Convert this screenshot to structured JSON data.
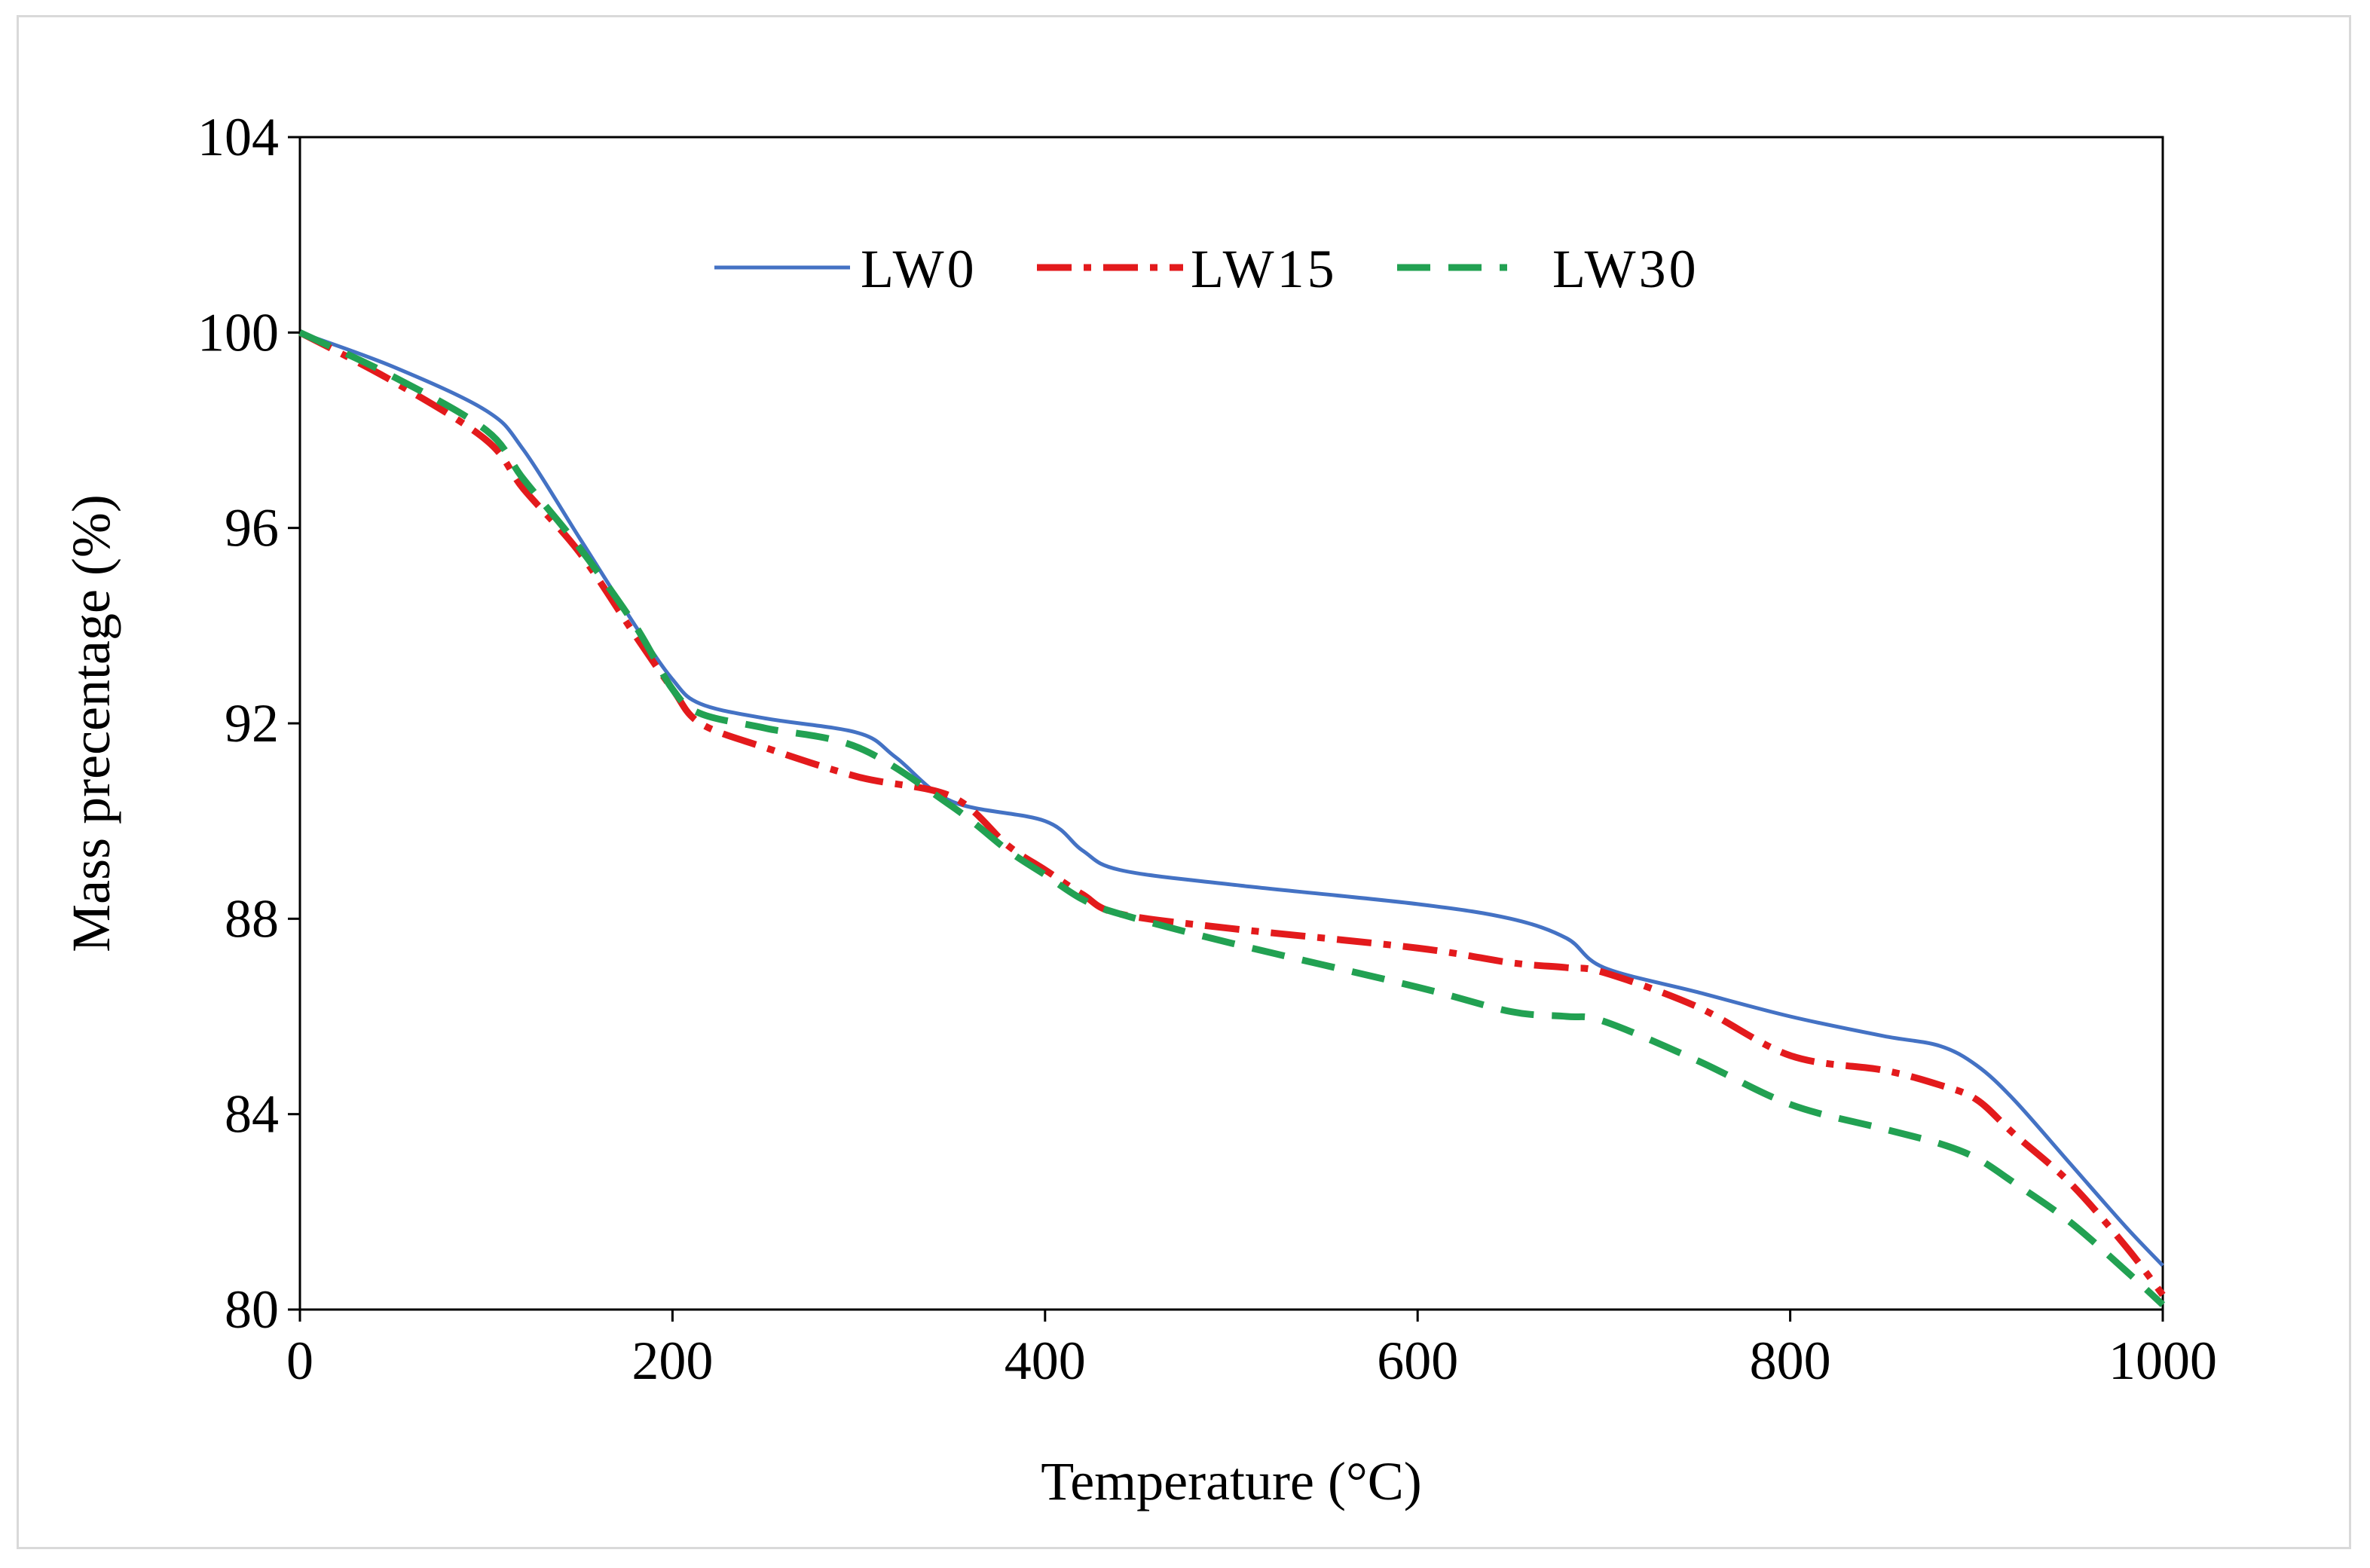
{
  "chart_data": {
    "type": "line",
    "title": "",
    "xlabel": "Temperature (°C)",
    "ylabel": "Mass precentage (%)",
    "xlim": [
      0,
      1000
    ],
    "ylim": [
      80,
      104
    ],
    "xticks": [
      0,
      200,
      400,
      600,
      800,
      1000
    ],
    "yticks": [
      80,
      84,
      88,
      92,
      96,
      100,
      104
    ],
    "grid": false,
    "legend_position": "top-center",
    "series": [
      {
        "name": "LW0",
        "color": "#4472c4",
        "style": "solid",
        "x": [
          0,
          50,
          100,
          120,
          150,
          180,
          200,
          215,
          250,
          300,
          320,
          350,
          400,
          420,
          440,
          500,
          600,
          650,
          680,
          700,
          750,
          800,
          850,
          880,
          900,
          920,
          950,
          980,
          1000
        ],
        "y": [
          100,
          99.3,
          98.4,
          97.6,
          95.8,
          94.0,
          92.9,
          92.4,
          92.1,
          91.8,
          91.3,
          90.4,
          90.0,
          89.4,
          89.0,
          88.7,
          88.3,
          88.0,
          87.6,
          87.0,
          86.5,
          86.0,
          85.6,
          85.4,
          85.0,
          84.3,
          83.0,
          81.7,
          80.9
        ]
      },
      {
        "name": "LW15",
        "color": "#e31a1c",
        "style": "dashdot",
        "x": [
          0,
          50,
          100,
          120,
          150,
          180,
          200,
          215,
          250,
          300,
          350,
          380,
          400,
          420,
          440,
          500,
          600,
          650,
          680,
          700,
          750,
          800,
          850,
          880,
          900,
          920,
          950,
          980,
          1000
        ],
        "y": [
          100,
          99.0,
          97.8,
          96.8,
          95.5,
          93.8,
          92.7,
          92.0,
          91.5,
          90.9,
          90.5,
          89.5,
          89.0,
          88.5,
          88.1,
          87.8,
          87.4,
          87.1,
          87.0,
          86.9,
          86.2,
          85.2,
          84.9,
          84.6,
          84.3,
          83.6,
          82.6,
          81.3,
          80.3
        ]
      },
      {
        "name": "LW30",
        "color": "#22a152",
        "style": "dashed",
        "x": [
          0,
          50,
          100,
          120,
          150,
          180,
          200,
          215,
          250,
          300,
          350,
          380,
          400,
          420,
          440,
          500,
          600,
          650,
          680,
          700,
          750,
          800,
          850,
          880,
          900,
          920,
          950,
          980,
          1000
        ],
        "y": [
          100,
          99.1,
          98.0,
          97.0,
          95.6,
          94.0,
          92.7,
          92.2,
          91.9,
          91.5,
          90.3,
          89.4,
          88.9,
          88.4,
          88.1,
          87.5,
          86.6,
          86.1,
          86.0,
          85.9,
          85.1,
          84.2,
          83.7,
          83.4,
          83.1,
          82.6,
          81.8,
          80.8,
          80.1
        ]
      }
    ]
  }
}
